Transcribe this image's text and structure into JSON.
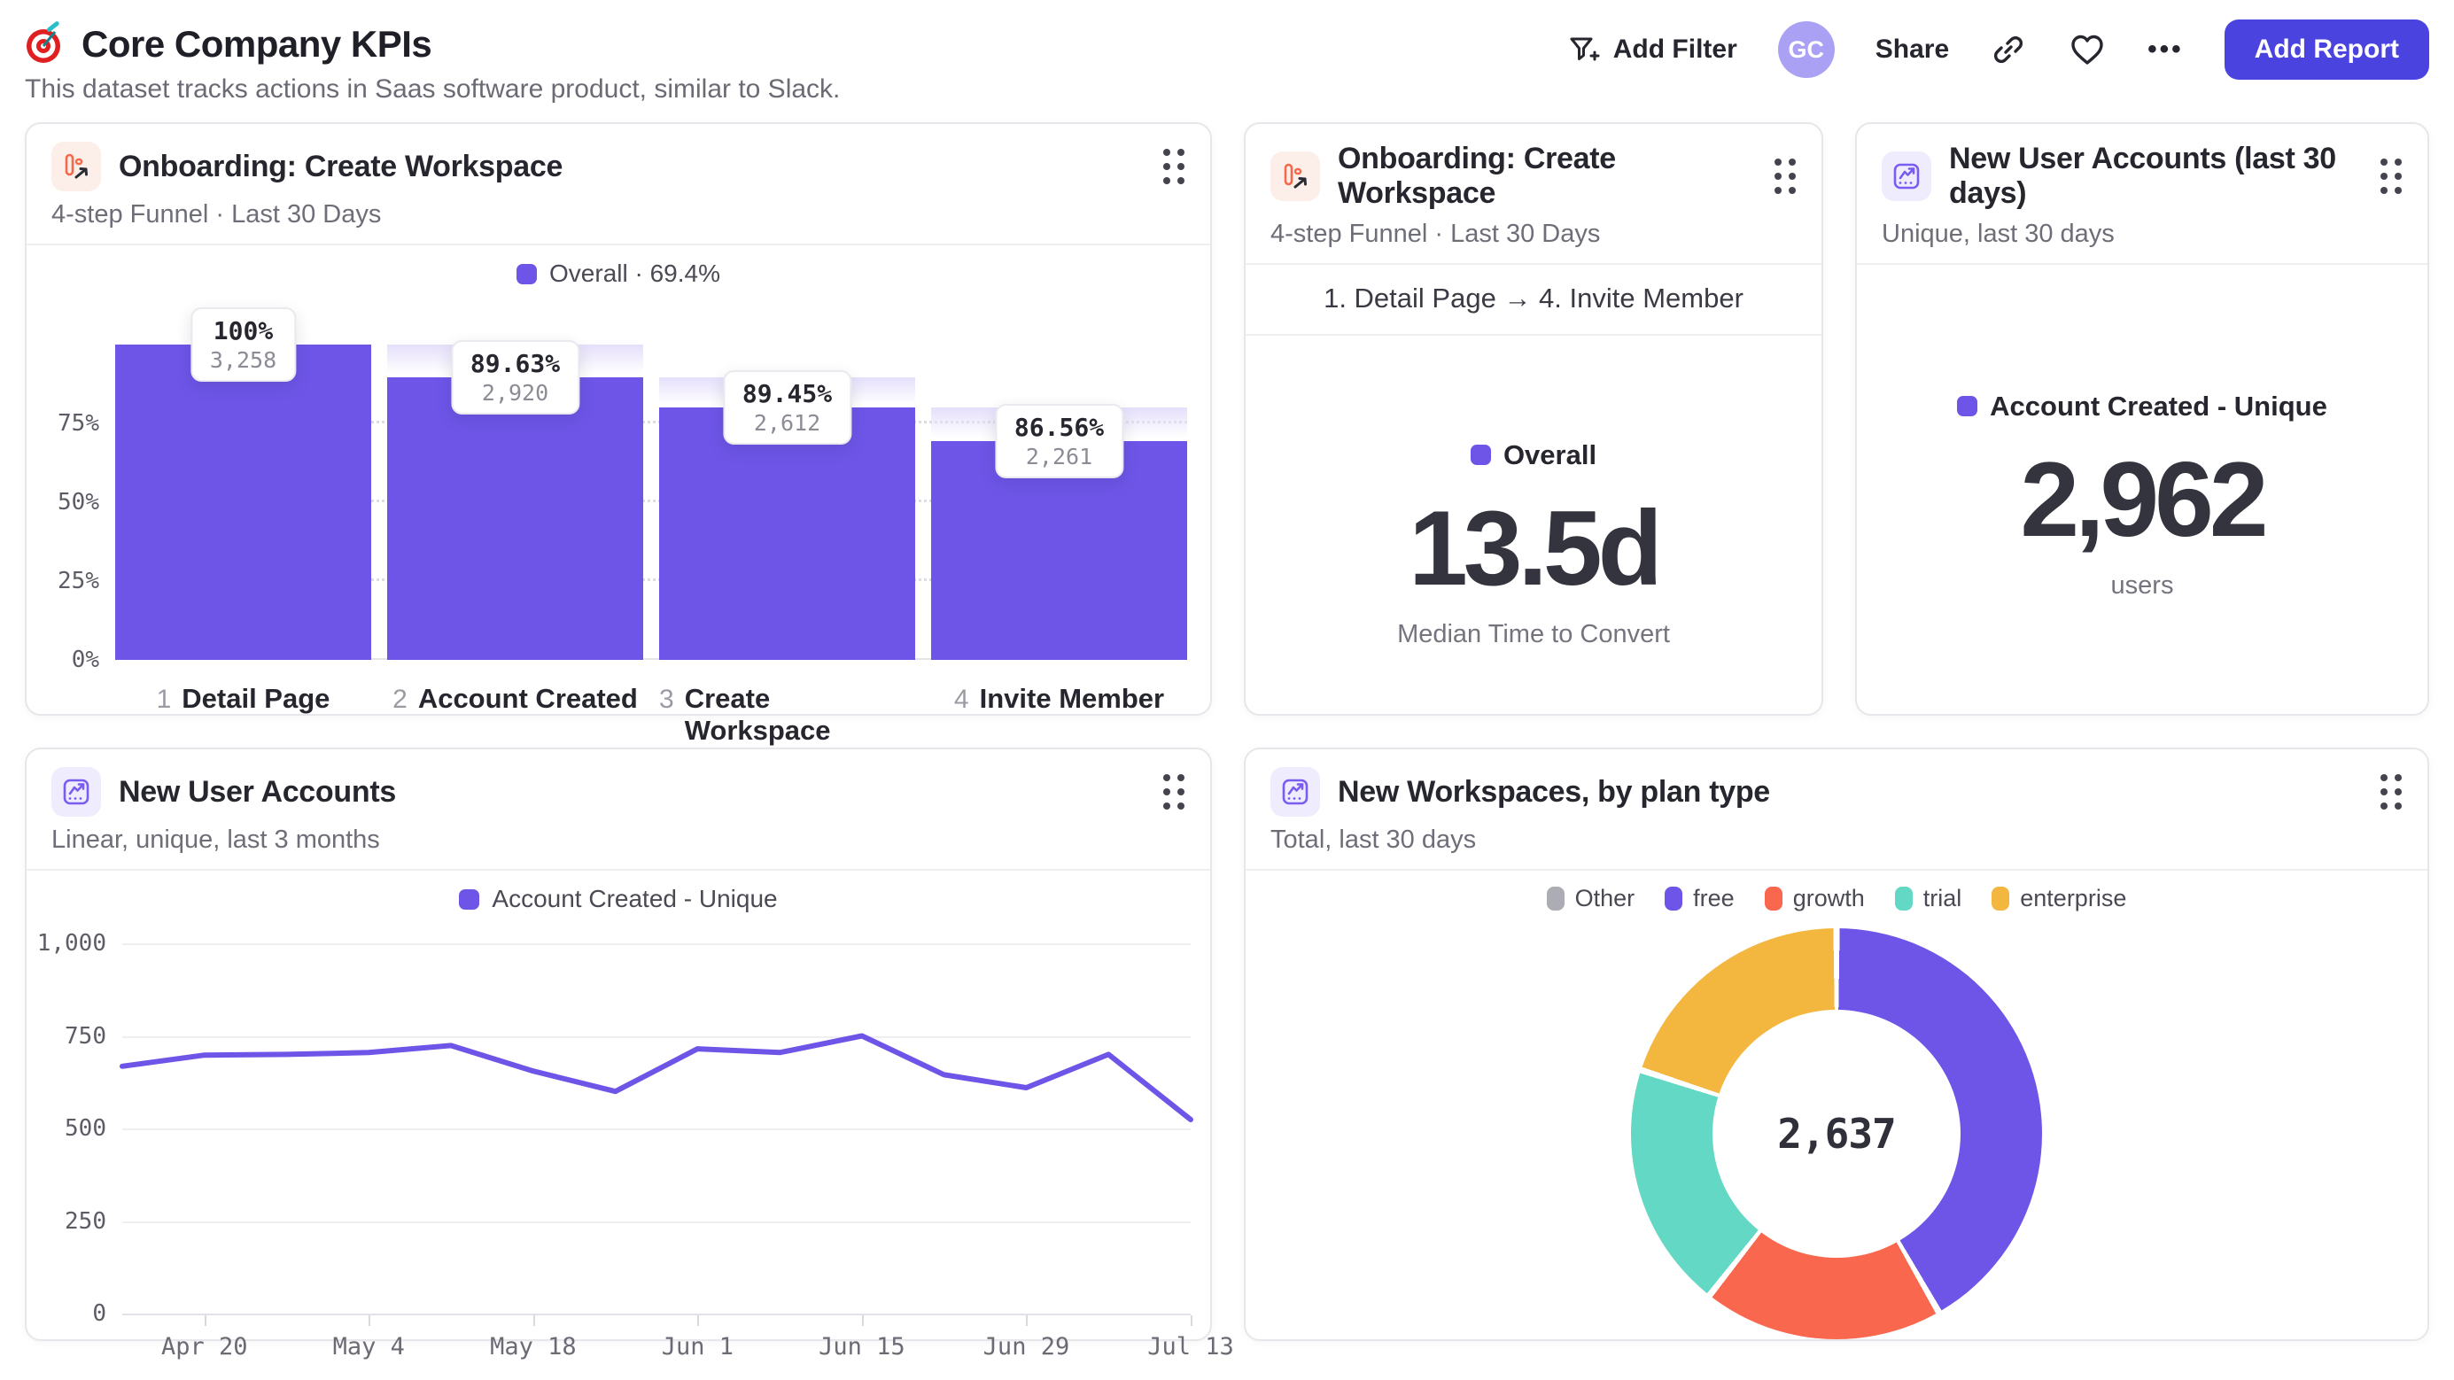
{
  "page": {
    "title": "Core Company KPIs",
    "subtitle": "This dataset tracks actions in Saas software product, similar to Slack."
  },
  "header": {
    "add_filter_label": "Add Filter",
    "avatar_initials": "GC",
    "share_label": "Share",
    "more_label": "•••",
    "add_report_label": "Add Report"
  },
  "colors": {
    "accent_purple": "#6e55e8",
    "coral": "#f9684e",
    "teal": "#63d8c4",
    "yellow": "#f3b73f",
    "gray": "#acacb4",
    "button_indigo": "#4a43df",
    "avatar_bg": "#aba1f4"
  },
  "cards": {
    "funnel": {
      "title": "Onboarding: Create Workspace",
      "subtitle": "4-step Funnel · Last 30 Days",
      "legend_label": "Overall · 69.4%"
    },
    "time_to_convert": {
      "title": "Onboarding: Create Workspace",
      "subtitle": "4-step Funnel · Last 30 Days",
      "range_label": "1. Detail Page → 4. Invite Member",
      "legend_label": "Overall",
      "value": "13.5d",
      "caption": "Median Time to Convert"
    },
    "new_accounts_total": {
      "title": "New User Accounts (last 30 days)",
      "subtitle": "Unique, last 30 days",
      "legend_label": "Account Created - Unique",
      "value": "2,962",
      "caption": "users"
    },
    "new_accounts_trend": {
      "title": "New User Accounts",
      "subtitle": "Linear, unique, last 3 months",
      "legend_label": "Account Created - Unique"
    },
    "workspaces_by_plan": {
      "title": "New Workspaces, by plan type",
      "subtitle": "Total, last 30 days",
      "center_value": "2,637"
    }
  },
  "chart_data": [
    {
      "type": "bar",
      "variant": "funnel",
      "title": "Onboarding: Create Workspace",
      "legend": "Overall · 69.4%",
      "overall_conversion_pct": 69.4,
      "ylim": [
        0,
        100
      ],
      "y_ticks": [
        {
          "label": "0%",
          "pct": 0
        },
        {
          "label": "25%",
          "pct": 25
        },
        {
          "label": "50%",
          "pct": 50
        },
        {
          "label": "75%",
          "pct": 75
        }
      ],
      "steps": [
        {
          "index": "1",
          "label": "Detail Page",
          "count": 3258,
          "count_label": "3,258",
          "conversion_label": "100%",
          "pct_of_first": 100,
          "prev_pct_of_first": 100
        },
        {
          "index": "2",
          "label": "Account Created",
          "count": 2920,
          "count_label": "2,920",
          "conversion_label": "89.63%",
          "pct_of_first": 89.63,
          "prev_pct_of_first": 100
        },
        {
          "index": "3",
          "label": "Create Workspace",
          "count": 2612,
          "count_label": "2,612",
          "conversion_label": "89.45%",
          "pct_of_first": 80.17,
          "prev_pct_of_first": 89.63
        },
        {
          "index": "4",
          "label": "Invite Member",
          "count": 2261,
          "count_label": "2,261",
          "conversion_label": "86.56%",
          "pct_of_first": 69.4,
          "prev_pct_of_first": 80.17
        }
      ]
    },
    {
      "type": "line",
      "title": "New User Accounts",
      "series": [
        {
          "name": "Account Created - Unique",
          "values": [
            668,
            698,
            700,
            705,
            724,
            655,
            600,
            715,
            705,
            750,
            645,
            610,
            700,
            524
          ]
        }
      ],
      "ylim": [
        0,
        1000
      ],
      "y_ticks": [
        {
          "label": "0",
          "value": 0
        },
        {
          "label": "250",
          "value": 250
        },
        {
          "label": "500",
          "value": 500
        },
        {
          "label": "750",
          "value": 750
        },
        {
          "label": "1,000",
          "value": 1000
        }
      ],
      "x_tick_labels": [
        "Apr 20",
        "May 4",
        "May 18",
        "Jun 1",
        "Jun 15",
        "Jun 29",
        "Jul 13"
      ],
      "x_tick_indices": [
        1,
        3,
        5,
        7,
        9,
        11,
        13
      ],
      "grid": true,
      "legend_position": "top"
    },
    {
      "type": "pie",
      "variant": "donut",
      "title": "New Workspaces, by plan type",
      "total": 2637,
      "total_label": "2,637",
      "legend_position": "top",
      "slices": [
        {
          "label": "Other",
          "value": 0,
          "color": "#acacb4"
        },
        {
          "label": "free",
          "value": 1100,
          "color": "#6e55e8"
        },
        {
          "label": "growth",
          "value": 498,
          "color": "#f9684e"
        },
        {
          "label": "trial",
          "value": 512,
          "color": "#63d8c4"
        },
        {
          "label": "enterprise",
          "value": 527,
          "color": "#f3b73f"
        }
      ]
    }
  ]
}
